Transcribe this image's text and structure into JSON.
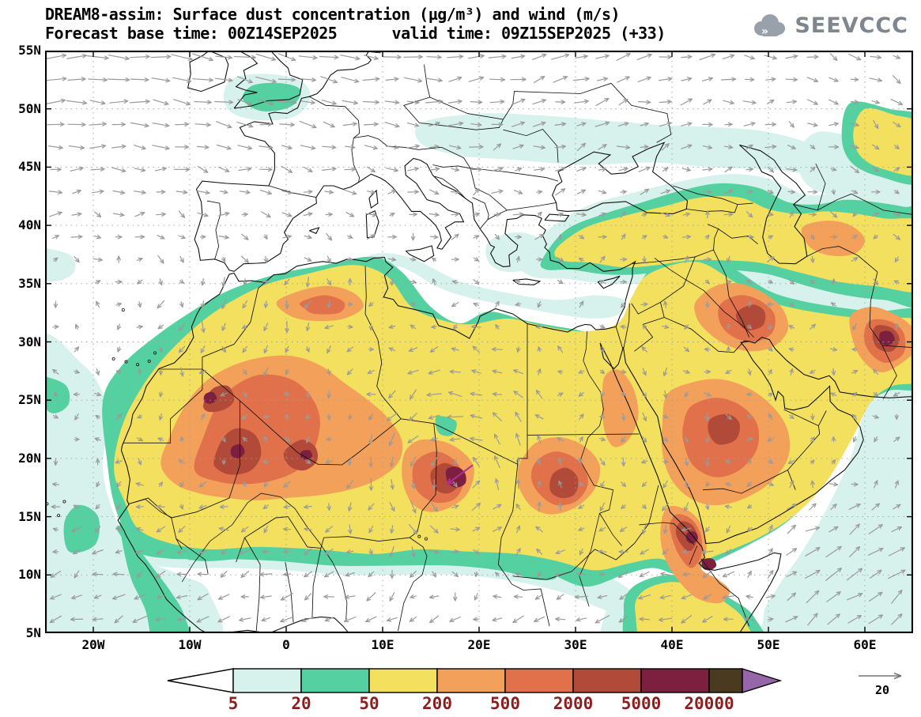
{
  "header": {
    "title_line1": "DREAM8-assim: Surface dust concentration (µg/m³) and wind (m/s)",
    "title_line2": "Forecast base time: 00Z14SEP2025      valid time: 09Z15SEP2025 (+33)",
    "logo_text": "SEEVCCC"
  },
  "map": {
    "lat_labels": [
      "55N",
      "50N",
      "45N",
      "40N",
      "35N",
      "30N",
      "25N",
      "20N",
      "15N",
      "10N",
      "5N"
    ],
    "lon_labels": [
      "20W",
      "10W",
      "0",
      "10E",
      "20E",
      "30E",
      "40E",
      "50E",
      "60E"
    ]
  },
  "colorbar": {
    "labels": [
      "5",
      "20",
      "50",
      "200",
      "500",
      "2000",
      "5000",
      "20000"
    ],
    "colors": [
      "#ffffff",
      "#d7f2ec",
      "#55d0a0",
      "#f2e05e",
      "#f2a05a",
      "#e0714b",
      "#b14a38",
      "#7d2040",
      "#4a3a20",
      "#9666aa"
    ],
    "label_color": "#8b1f1f"
  },
  "wind_ref": {
    "value": "20"
  }
}
